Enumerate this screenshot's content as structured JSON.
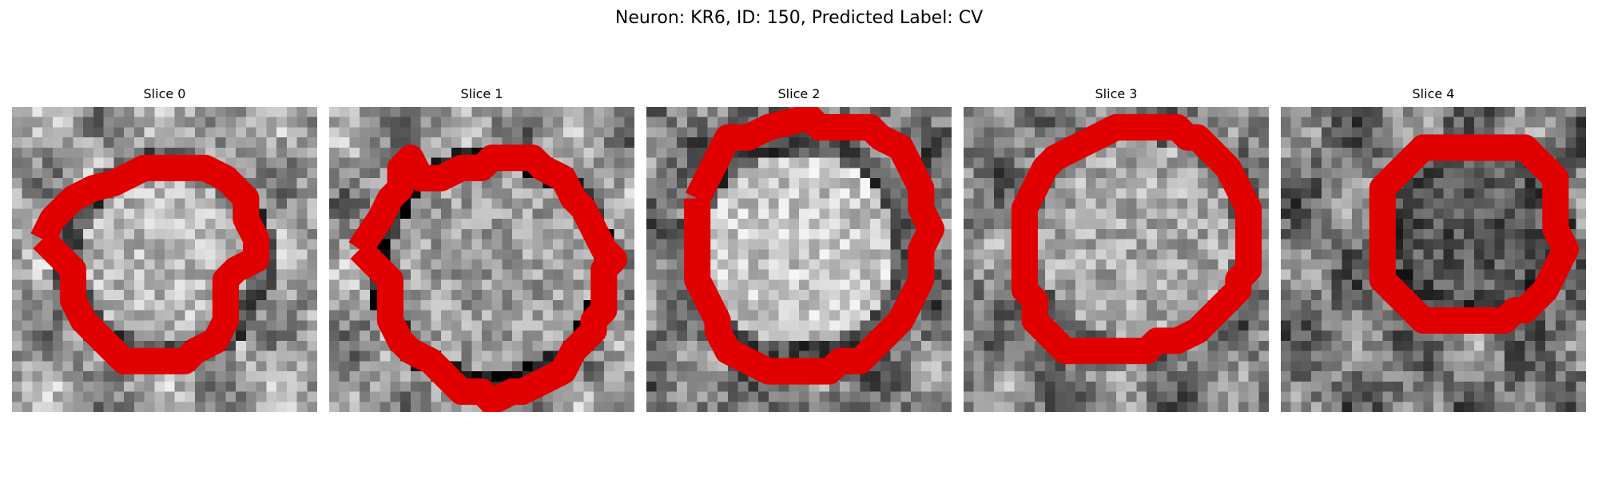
{
  "figure": {
    "title": "Neuron: KR6, ID: 150, Predicted Label: CV"
  },
  "panels": [
    {
      "title": "Slice 0",
      "image_description": "grayscale microscopy crop with bright circular soma",
      "contour_color": "#e00000"
    },
    {
      "title": "Slice 1",
      "image_description": "grayscale microscopy crop with dark ring around soma",
      "contour_color": "#e00000"
    },
    {
      "title": "Slice 2",
      "image_description": "grayscale microscopy crop with bright rounded soma",
      "contour_color": "#e00000"
    },
    {
      "title": "Slice 3",
      "image_description": "grayscale microscopy crop with octagonal outlined soma",
      "contour_color": "#e00000"
    },
    {
      "title": "Slice 4",
      "image_description": "grayscale microscopy crop with darker interior region",
      "contour_color": "#e00000"
    }
  ]
}
